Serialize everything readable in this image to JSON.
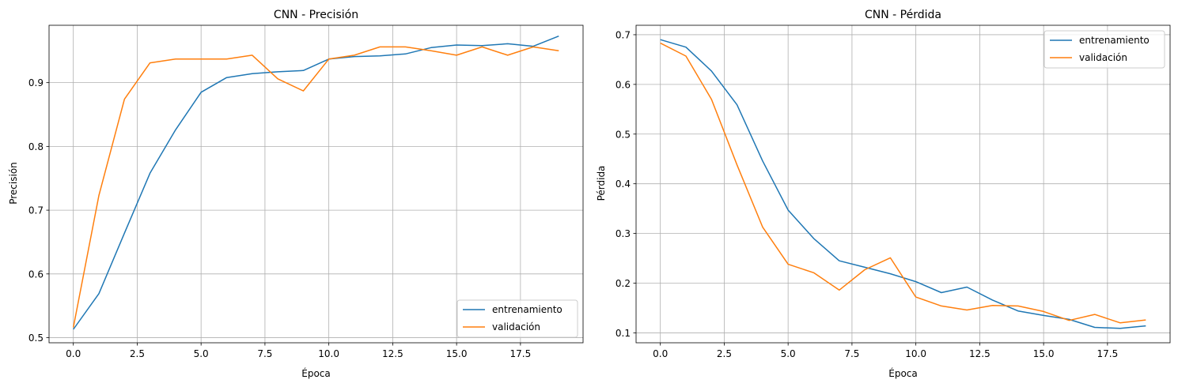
{
  "chart_data": [
    {
      "type": "line",
      "title": "CNN - Precisión",
      "xlabel": "Época",
      "ylabel": "Precisión",
      "xlim": [
        -0.95,
        19.95
      ],
      "ylim": [
        0.492,
        0.99
      ],
      "xticks": [
        0.0,
        2.5,
        5.0,
        7.5,
        10.0,
        12.5,
        15.0,
        17.5
      ],
      "xtick_labels": [
        "0.0",
        "2.5",
        "5.0",
        "7.5",
        "10.0",
        "12.5",
        "15.0",
        "17.5"
      ],
      "yticks": [
        0.5,
        0.6,
        0.7,
        0.8,
        0.9
      ],
      "ytick_labels": [
        "0.5",
        "0.6",
        "0.7",
        "0.8",
        "0.9"
      ],
      "grid": true,
      "legend_position": "lower-right",
      "x": [
        0,
        1,
        2,
        3,
        4,
        5,
        6,
        7,
        8,
        9,
        10,
        11,
        12,
        13,
        14,
        15,
        16,
        17,
        18,
        19
      ],
      "series": [
        {
          "name": "entrenamiento",
          "color": "#1f77b4",
          "values": [
            0.513,
            0.569,
            0.664,
            0.758,
            0.826,
            0.885,
            0.908,
            0.914,
            0.917,
            0.919,
            0.937,
            0.941,
            0.942,
            0.945,
            0.955,
            0.959,
            0.958,
            0.961,
            0.957,
            0.973
          ]
        },
        {
          "name": "validación",
          "color": "#ff7f0e",
          "values": [
            0.516,
            0.723,
            0.874,
            0.931,
            0.937,
            0.937,
            0.937,
            0.943,
            0.906,
            0.887,
            0.937,
            0.943,
            0.956,
            0.956,
            0.95,
            0.943,
            0.956,
            0.943,
            0.956,
            0.95
          ]
        }
      ]
    },
    {
      "type": "line",
      "title": "CNN - Pérdida",
      "xlabel": "Época",
      "ylabel": "Pérdida",
      "xlim": [
        -0.95,
        19.95
      ],
      "ylim": [
        0.08,
        0.719
      ],
      "xticks": [
        0.0,
        2.5,
        5.0,
        7.5,
        10.0,
        12.5,
        15.0,
        17.5
      ],
      "xtick_labels": [
        "0.0",
        "2.5",
        "5.0",
        "7.5",
        "10.0",
        "12.5",
        "15.0",
        "17.5"
      ],
      "yticks": [
        0.1,
        0.2,
        0.3,
        0.4,
        0.5,
        0.6,
        0.7
      ],
      "ytick_labels": [
        "0.1",
        "0.2",
        "0.3",
        "0.4",
        "0.5",
        "0.6",
        "0.7"
      ],
      "grid": true,
      "legend_position": "upper-right",
      "x": [
        0,
        1,
        2,
        3,
        4,
        5,
        6,
        7,
        8,
        9,
        10,
        11,
        12,
        13,
        14,
        15,
        16,
        17,
        18,
        19
      ],
      "series": [
        {
          "name": "entrenamiento",
          "color": "#1f77b4",
          "values": [
            0.69,
            0.675,
            0.627,
            0.559,
            0.446,
            0.347,
            0.29,
            0.245,
            0.232,
            0.219,
            0.203,
            0.181,
            0.192,
            0.166,
            0.144,
            0.135,
            0.127,
            0.111,
            0.109,
            0.114
          ]
        },
        {
          "name": "validación",
          "color": "#ff7f0e",
          "values": [
            0.683,
            0.657,
            0.57,
            0.438,
            0.313,
            0.238,
            0.221,
            0.186,
            0.227,
            0.251,
            0.172,
            0.154,
            0.146,
            0.155,
            0.154,
            0.143,
            0.125,
            0.137,
            0.12,
            0.126
          ]
        }
      ]
    }
  ]
}
